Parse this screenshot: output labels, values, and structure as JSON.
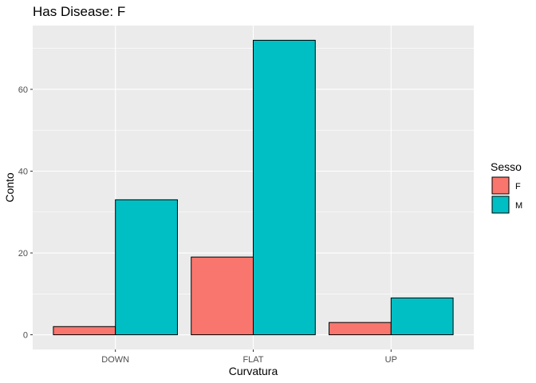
{
  "chart_data": {
    "type": "bar",
    "title": "Has Disease: F",
    "xlabel": "Curvatura",
    "ylabel": "Conto",
    "categories": [
      "DOWN",
      "FLAT",
      "UP"
    ],
    "series": [
      {
        "name": "F",
        "values": [
          2,
          19,
          3
        ],
        "color": "#F8766D"
      },
      {
        "name": "M",
        "values": [
          33,
          72,
          9
        ],
        "color": "#00BFC4"
      }
    ],
    "ylim": [
      -3.6,
      75.6
    ],
    "yticks": [
      0,
      20,
      40,
      60
    ],
    "grid": true,
    "legend": {
      "title": "Sesso",
      "placement": "right"
    }
  }
}
